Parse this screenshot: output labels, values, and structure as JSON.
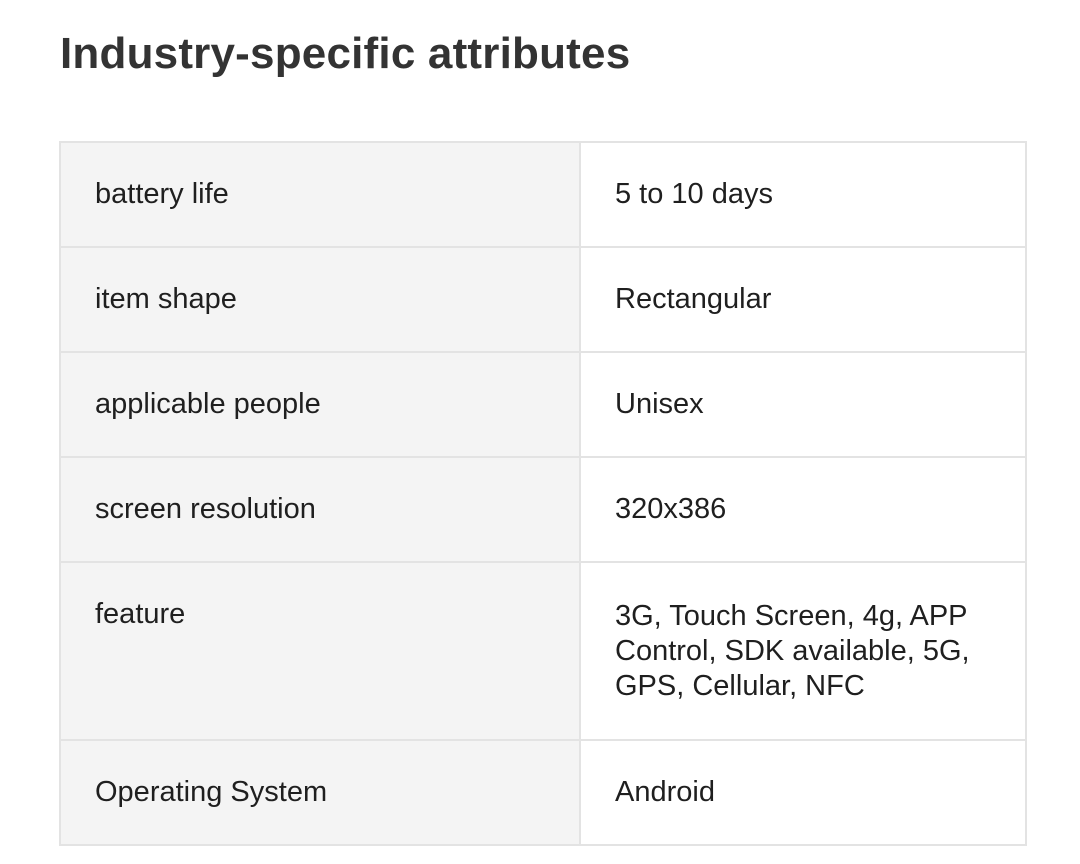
{
  "heading": "Industry-specific attributes",
  "attributes": [
    {
      "key": "battery life",
      "value": "5 to 10 days"
    },
    {
      "key": "item shape",
      "value": "Rectangular"
    },
    {
      "key": "applicable people",
      "value": "Unisex"
    },
    {
      "key": "screen resolution",
      "value": "320x386"
    },
    {
      "key": "feature",
      "value": "3G, Touch Screen, 4g, APP Control, SDK available, 5G, GPS, Cellular, NFC"
    },
    {
      "key": "Operating System",
      "value": "Android"
    }
  ]
}
